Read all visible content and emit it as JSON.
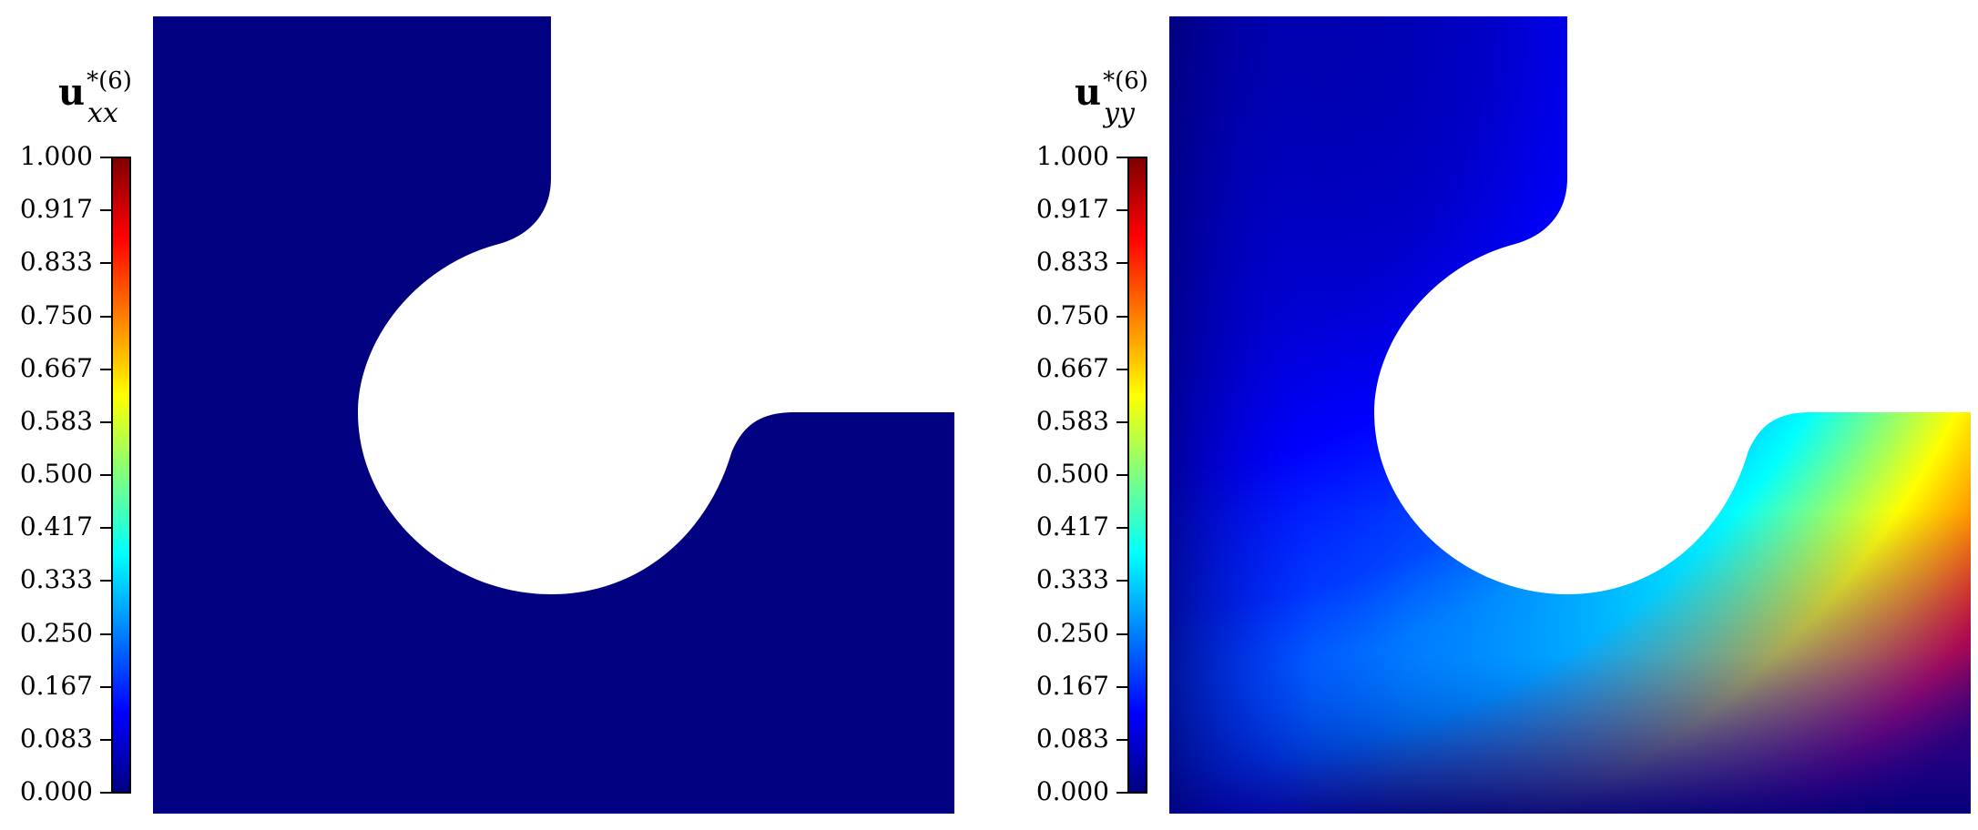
{
  "panels": [
    {
      "field": "u",
      "superscript": "*(6)",
      "subscript": "xx",
      "fill_color": "#000080"
    },
    {
      "field": "u",
      "superscript": "*(6)",
      "subscript": "yy"
    }
  ],
  "colorbar": {
    "colormap": "jet",
    "min": 0.0,
    "max": 1.0,
    "ticks": [
      "1.000",
      "0.917",
      "0.833",
      "0.750",
      "0.667",
      "0.583",
      "0.500",
      "0.417",
      "0.333",
      "0.250",
      "0.167",
      "0.083",
      "0.000"
    ],
    "stops": [
      "#00007f",
      "#0000ff",
      "#007fff",
      "#00ffff",
      "#7fff7f",
      "#ffff00",
      "#ff7f00",
      "#ff0000",
      "#7f0000"
    ]
  }
}
